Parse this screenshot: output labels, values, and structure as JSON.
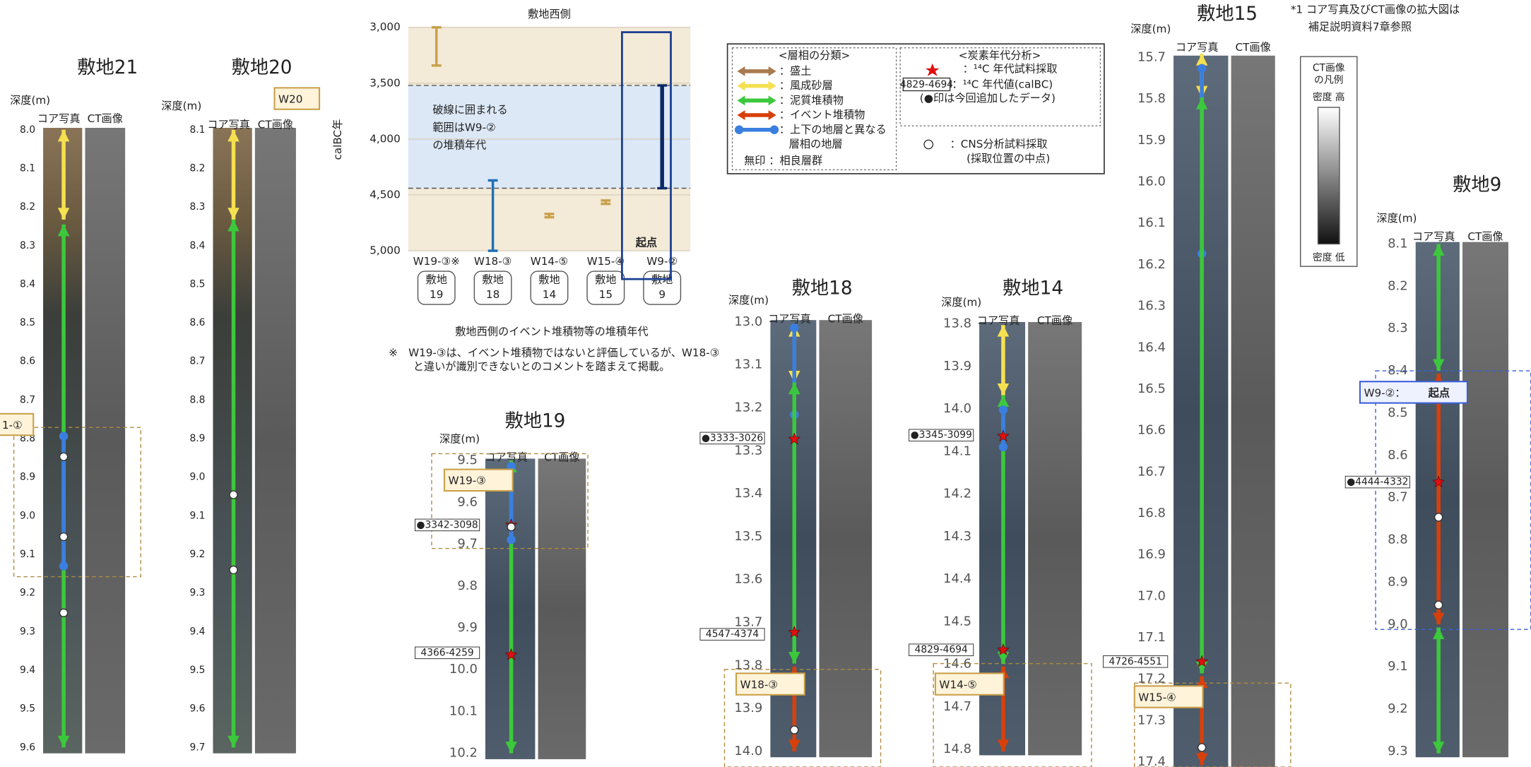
{
  "note": [
    "*1  コア写真及びCT画像の拡大図は",
    "補足説明資料7章参照"
  ],
  "ct_legend": {
    "title": [
      "CT画像",
      "の凡例"
    ],
    "high": "密度 高",
    "low": "密度 低"
  },
  "legend": {
    "facies_title": "<層相の分類>",
    "facies": [
      "：盛土",
      "：風成砂層",
      "：泥質堆積物",
      "：イベント堆積物",
      "：上下の地層と異なる",
      "層相の地層"
    ],
    "none": "無印 ：相良層群",
    "carbon_title": "<炭素年代分析>",
    "carbon": [
      "：¹⁴C 年代試料採取",
      "：¹⁴C 年代値(calBC)",
      "(●印は今回追加したデータ)"
    ],
    "carbon_example": "4829-4694",
    "cns": [
      "：CNS分析試料採取",
      "(採取位置の中点)"
    ]
  },
  "age_chart": {
    "title": "敷地西側",
    "ylabel": "calBC年",
    "ylim": [
      3000,
      5000
    ],
    "y_inverted": true,
    "yticks": [
      {
        "value": 3000,
        "label": "3,000"
      },
      {
        "value": 3500,
        "label": "3,500"
      },
      {
        "value": 4000,
        "label": "4,000"
      },
      {
        "value": 4500,
        "label": "4,500"
      },
      {
        "value": 5000,
        "label": "5,000"
      }
    ],
    "categories": [
      "W19-③※",
      "W18-③",
      "W14-⑤",
      "W15-④",
      "W9-②"
    ],
    "sites": [
      [
        "敷地",
        "19"
      ],
      [
        "敷地",
        "18"
      ],
      [
        "敷地",
        "14"
      ],
      [
        "敷地",
        "15"
      ],
      [
        "敷地",
        "9"
      ]
    ],
    "low": [
      3000,
      4370,
      4670,
      4550,
      3520
    ],
    "high": [
      3342,
      5000,
      4700,
      4580,
      4440
    ],
    "colors": [
      "#c9a04a",
      "#1f6fb5",
      "#c9a04a",
      "#c9a04a",
      "#0b2a66"
    ],
    "band": [
      3520,
      4440
    ],
    "annotation": [
      "破線に囲まれる",
      "範囲はW9-②",
      "の堆積年代"
    ],
    "origin_label": "起点",
    "caption": "敷地西側のイベント堆積物等の堆積年代",
    "footnote": [
      "※　W19-③は、イベント堆積物ではないと評価しているが、W18-③",
      "と違いが識別できないとのコメントを踏まえて掲載。"
    ]
  },
  "cores": [
    {
      "title": "敷地21",
      "depth_label": "深度(m)",
      "photo_label": "コア写真",
      "ct_label": "CT画像",
      "depths": [
        "8.0",
        "8.1",
        "8.2",
        "8.3",
        "8.4",
        "8.5",
        "8.6",
        "8.7",
        "8.8",
        "8.9",
        "9.0",
        "9.1",
        "9.2",
        "9.3",
        "9.4",
        "9.5",
        "9.6"
      ],
      "tag": "1-①",
      "samples": []
    },
    {
      "title": "敷地20",
      "depth_label": "深度(m)",
      "photo_label": "コア写真",
      "ct_label": "CT画像",
      "depths": [
        "8.1",
        "8.2",
        "8.3",
        "8.4",
        "8.5",
        "8.6",
        "8.7",
        "8.8",
        "8.9",
        "9.0",
        "9.1",
        "9.2",
        "9.3",
        "9.4",
        "9.5",
        "9.6",
        "9.7"
      ],
      "tag": "W20",
      "samples": []
    },
    {
      "title": "敷地19",
      "depth_label": "深度(m)",
      "photo_label": "コア写真",
      "ct_label": "CT画像",
      "depths": [
        "9.5",
        "9.6",
        "9.7",
        "9.8",
        "9.9",
        "10.0",
        "10.1",
        "10.2"
      ],
      "tag": "W19-③",
      "samples": [
        "●3342-3098",
        "4366-4259"
      ]
    },
    {
      "title": "敷地18",
      "depth_label": "深度(m)",
      "photo_label": "コア写真",
      "ct_label": "CT画像",
      "depths": [
        "13.0",
        "13.1",
        "13.2",
        "13.3",
        "13.4",
        "13.5",
        "13.6",
        "13.7",
        "13.8",
        "13.9",
        "14.0"
      ],
      "tag": "W18-③",
      "samples": [
        "●3333-3026",
        "4547-4374"
      ]
    },
    {
      "title": "敷地14",
      "depth_label": "深度(m)",
      "photo_label": "コア写真",
      "ct_label": "CT画像",
      "depths": [
        "13.8",
        "13.9",
        "14.0",
        "14.1",
        "14.2",
        "14.3",
        "14.4",
        "14.5",
        "14.6",
        "14.7",
        "14.8"
      ],
      "tag": "W14-⑤",
      "samples": [
        "●3345-3099",
        "4829-4694"
      ]
    },
    {
      "title": "敷地15",
      "depth_label": "深度(m)",
      "photo_label": "コア写真",
      "ct_label": "CT画像",
      "depths": [
        "15.7",
        "15.8",
        "15.9",
        "16.0",
        "16.1",
        "16.2",
        "16.3",
        "16.4",
        "16.5",
        "16.6",
        "16.7",
        "16.8",
        "16.9",
        "17.0",
        "17.1",
        "17.2",
        "17.3",
        "17.4"
      ],
      "tag": "W15-④",
      "samples": [
        "4726-4551"
      ]
    },
    {
      "title": "敷地9",
      "depth_label": "深度(m)",
      "photo_label": "コア写真",
      "ct_label": "CT画像",
      "depths": [
        "8.1",
        "8.2",
        "8.3",
        "8.4",
        "8.5",
        "8.6",
        "8.7",
        "8.8",
        "8.9",
        "9.0",
        "9.1",
        "9.2",
        "9.3"
      ],
      "tag": "W9-②：",
      "tag_red": "起点",
      "samples": [
        "●4444-4332"
      ]
    }
  ]
}
